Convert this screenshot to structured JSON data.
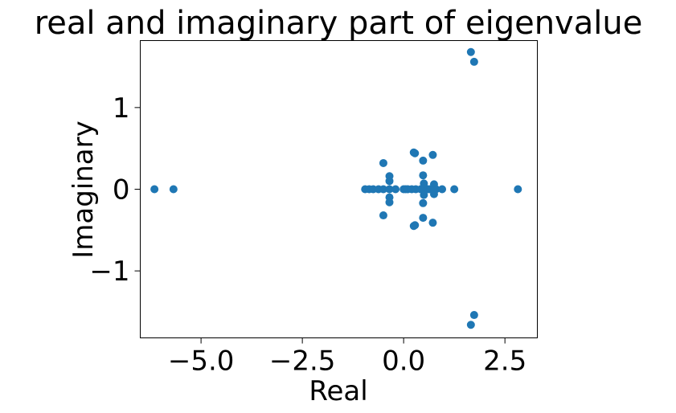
{
  "chart_data": {
    "type": "scatter",
    "title": "real and imaginary part of eigenvalue",
    "xlabel": "Real",
    "ylabel": "Imaginary",
    "xlim": [
      -6.5,
      3.3
    ],
    "ylim": [
      -1.82,
      1.82
    ],
    "xticks": [
      {
        "value": -5.0,
        "label": "−5.0"
      },
      {
        "value": -2.5,
        "label": "−2.5"
      },
      {
        "value": 0.0,
        "label": "0.0"
      },
      {
        "value": 2.5,
        "label": "2.5"
      }
    ],
    "yticks": [
      {
        "value": 1,
        "label": "1"
      },
      {
        "value": 0,
        "label": "0"
      },
      {
        "value": -1,
        "label": "−1"
      }
    ],
    "grid": false,
    "color": "#1f77b4",
    "x": [
      -6.15,
      -5.68,
      -0.95,
      -0.85,
      -0.75,
      -0.62,
      -0.5,
      -0.35,
      -0.2,
      0.0,
      0.05,
      0.1,
      0.2,
      0.3,
      0.42,
      0.5,
      0.6,
      0.65,
      0.75,
      0.8,
      0.95,
      1.25,
      2.82,
      -0.5,
      -0.5,
      -0.35,
      -0.35,
      -0.35,
      -0.35,
      0.25,
      0.28,
      0.25,
      0.28,
      0.48,
      0.48,
      0.48,
      0.48,
      0.5,
      0.5,
      0.75,
      0.75,
      0.75,
      0.75,
      0.72,
      0.72,
      1.66,
      1.74,
      1.66,
      1.74
    ],
    "y": [
      0,
      0,
      0,
      0,
      0,
      0,
      0,
      0,
      0,
      0,
      0,
      0,
      0,
      0,
      0,
      0,
      0,
      0,
      0,
      0,
      0,
      0,
      0,
      0.32,
      -0.32,
      0.16,
      0.1,
      -0.1,
      -0.16,
      0.45,
      0.44,
      -0.45,
      -0.44,
      0.35,
      -0.35,
      0.17,
      -0.17,
      0.07,
      -0.07,
      0.06,
      -0.06,
      0.02,
      -0.02,
      0.42,
      -0.41,
      1.68,
      1.56,
      -1.66,
      -1.54
    ]
  }
}
